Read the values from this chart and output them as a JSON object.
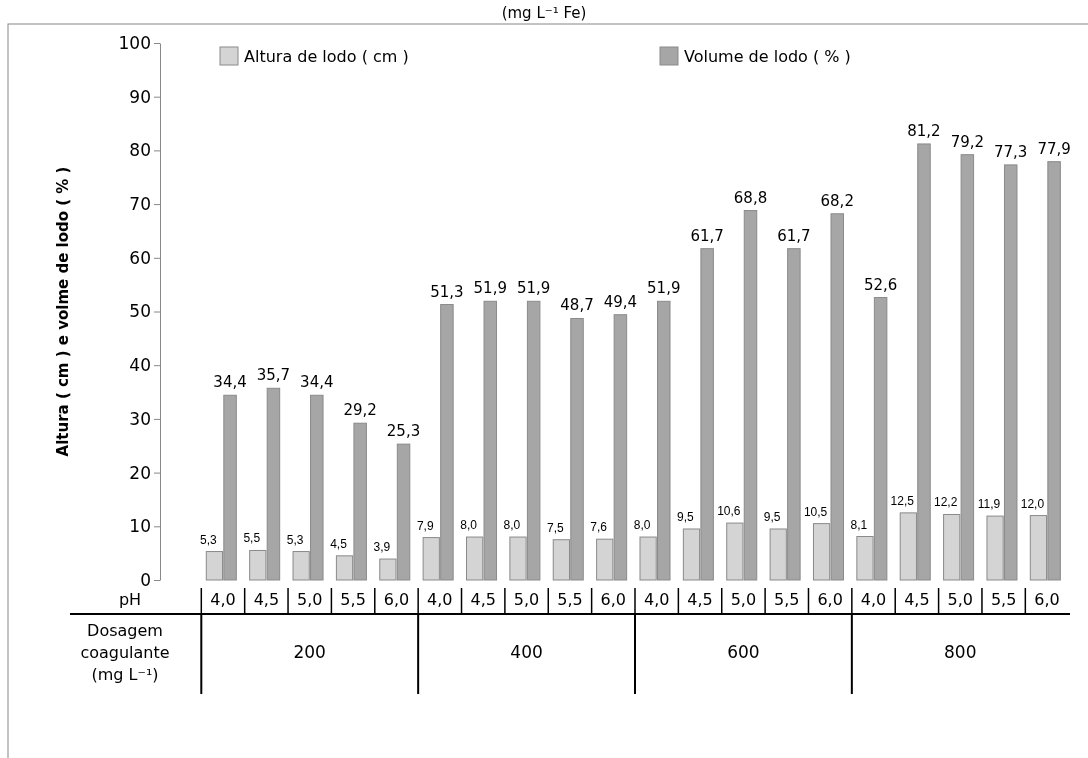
{
  "chart_data": {
    "type": "bar",
    "ylabel": "Altura ( cm ) e volme de lodo ( % )",
    "categories": [
      "4,0",
      "4,5",
      "5,0",
      "5,5",
      "6,0",
      "4,0",
      "4,5",
      "5,0",
      "5,5",
      "6,0",
      "4,0",
      "4,5",
      "5,0",
      "5,5",
      "6,0",
      "4,0",
      "4,5",
      "5,0",
      "5,5",
      "6,0"
    ],
    "series": [
      {
        "name": "Altura de lodo ( cm )",
        "color": "#d4d4d4",
        "values": [
          5.3,
          5.5,
          5.3,
          4.5,
          3.9,
          7.9,
          8.0,
          8.0,
          7.5,
          7.6,
          8.0,
          9.5,
          10.6,
          9.5,
          10.5,
          8.1,
          12.5,
          12.2,
          11.9,
          12.0
        ],
        "value_labels": [
          "5,3",
          "5,5",
          "5,3",
          "4,5",
          "3,9",
          "7,9",
          "8,0",
          "8,0",
          "7,5",
          "7,6",
          "8,0",
          "9,5",
          "10,6",
          "9,5",
          "10,5",
          "8,1",
          "12,5",
          "12,2",
          "11,9",
          "12,0"
        ]
      },
      {
        "name": "Volume de lodo ( % )",
        "color": "#a6a6a6",
        "values": [
          34.4,
          35.7,
          34.4,
          29.2,
          25.3,
          51.3,
          51.9,
          51.9,
          48.7,
          49.4,
          51.9,
          61.7,
          68.8,
          61.7,
          68.2,
          52.6,
          81.2,
          79.2,
          77.3,
          77.9
        ],
        "value_labels": [
          "34,4",
          "35,7",
          "34,4",
          "29,2",
          "25,3",
          "51,3",
          "51,9",
          "51,9",
          "48,7",
          "49,4",
          "51,9",
          "61,7",
          "68,8",
          "61,7",
          "68,2",
          "52,6",
          "81,2",
          "79,2",
          "77,3",
          "77,9"
        ]
      }
    ],
    "ylim": [
      0,
      100
    ],
    "yticks": [
      0,
      10,
      20,
      30,
      40,
      50,
      60,
      70,
      80,
      90,
      100
    ],
    "grid": false,
    "legend": "top",
    "annotations": [
      "(mg L⁻¹ Fe)",
      "pH",
      "Dosagem coagulante (mg L⁻¹)",
      "200",
      "400",
      "600",
      "800"
    ]
  }
}
